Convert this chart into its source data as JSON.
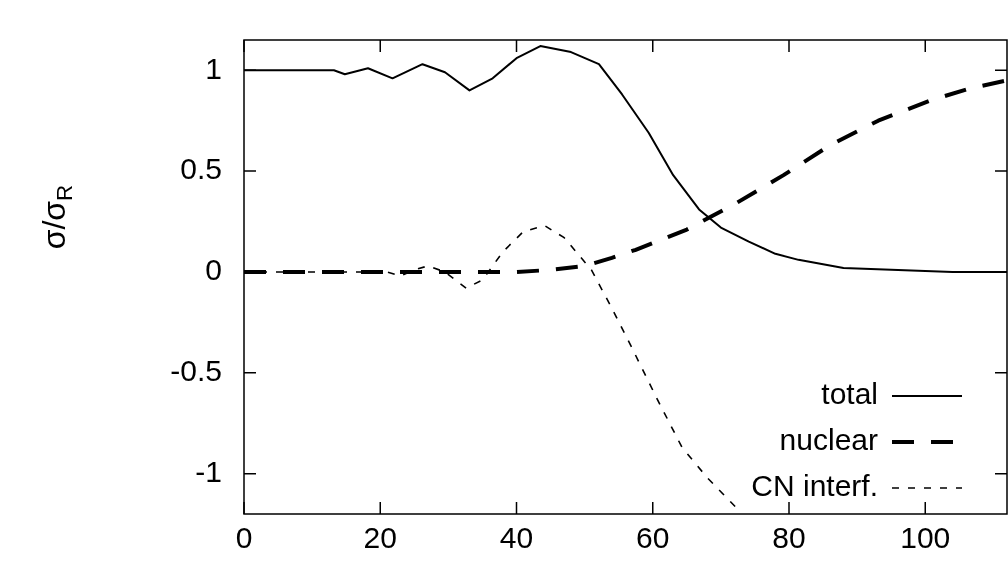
{
  "chart_data": {
    "type": "line",
    "ylabel": "σ/σ$_{R}$",
    "xlim": [
      0,
      112
    ],
    "xticks": [
      0,
      20,
      40,
      60,
      80,
      100
    ],
    "ylim": [
      -1.2,
      1.15
    ],
    "yticks": [
      -1,
      -0.5,
      0,
      0.5,
      1
    ],
    "grid": false,
    "legend": "bottom right",
    "marker": "none",
    "series": [
      {
        "name": "total",
        "color": "#000000",
        "line_style": "solid",
        "x": [
          0,
          10,
          13.2,
          14.8,
          18.2,
          21.8,
          26.2,
          29.5,
          33.1,
          36.5,
          40,
          43.5,
          48,
          52.1,
          55.5,
          59.4,
          63,
          66.8,
          70,
          74.1,
          78,
          81.4,
          88,
          96,
          104,
          112
        ],
        "values": [
          1,
          1,
          1,
          0.98,
          1.01,
          0.96,
          1.03,
          0.99,
          0.9,
          0.96,
          1.06,
          1.12,
          1.09,
          1.03,
          0.88,
          0.69,
          0.48,
          0.31,
          0.22,
          0.15,
          0.09,
          0.06,
          0.02,
          0.01,
          0,
          0
        ]
      },
      {
        "name": "nuclear",
        "color": "#000000",
        "line_style": "dashed",
        "x": [
          0,
          20,
          30,
          40,
          45,
          50,
          54,
          57.5,
          65,
          72.2,
          79.2,
          86.1,
          93.1,
          100.7,
          106.6,
          112
        ],
        "values": [
          0,
          0,
          0,
          0,
          0.01,
          0.03,
          0.07,
          0.11,
          0.21,
          0.34,
          0.48,
          0.63,
          0.75,
          0.85,
          0.91,
          0.95
        ]
      },
      {
        "name": "CN interf.",
        "color": "#000000",
        "line_style": "dotted",
        "x": [
          0,
          18,
          21,
          23,
          25,
          27,
          29.5,
          32.6,
          35,
          38,
          41,
          44.1,
          47,
          51,
          54,
          57,
          60.5,
          64.3,
          68,
          72.3
        ],
        "values": [
          0,
          0,
          0,
          -0.02,
          0.01,
          0.03,
          0,
          -0.08,
          -0.04,
          0.1,
          0.2,
          0.23,
          0.17,
          0.01,
          -0.18,
          -0.38,
          -0.62,
          -0.87,
          -1.02,
          -1.17
        ]
      }
    ]
  }
}
